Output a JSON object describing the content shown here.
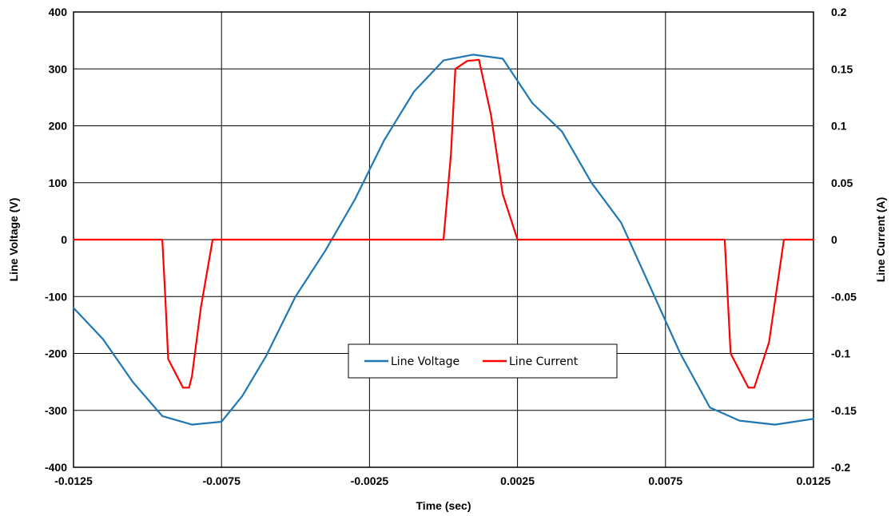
{
  "chart_data": {
    "type": "line",
    "title": "",
    "xlabel": "Time (sec)",
    "ylabel_left": "Line Voltage (V)",
    "ylabel_right": "Line Current (A)",
    "xlim": [
      -0.0125,
      0.0125
    ],
    "ylim_left": [
      -400,
      400
    ],
    "ylim_right": [
      -0.2,
      0.2
    ],
    "grid": true,
    "x_ticks": [
      "-0.0125",
      "-0.0075",
      "-0.0025",
      "0.0025",
      "0.0075",
      "0.0125"
    ],
    "x_tick_values": [
      -0.0125,
      -0.0075,
      -0.0025,
      0.0025,
      0.0075,
      0.0125
    ],
    "y_ticks_left": [
      "400",
      "300",
      "200",
      "100",
      "0",
      "-100",
      "-200",
      "-300",
      "-400"
    ],
    "y_tick_values_left": [
      400,
      300,
      200,
      100,
      0,
      -100,
      -200,
      -300,
      -400
    ],
    "y_ticks_right": [
      "0.2",
      "0.15",
      "0.1",
      "0.05",
      "0",
      "-0.05",
      "-0.1",
      "-0.15",
      "-0.2"
    ],
    "y_tick_values_right": [
      0.2,
      0.15,
      0.1,
      0.05,
      0,
      -0.05,
      -0.1,
      -0.15,
      -0.2
    ],
    "legend_position": "center",
    "series": [
      {
        "name": "Line Voltage",
        "axis": "left",
        "color": "#1f77b4",
        "x": [
          -0.0125,
          -0.0115,
          -0.0105,
          -0.0095,
          -0.0085,
          -0.0075,
          -0.0068,
          -0.006,
          -0.005,
          -0.004,
          -0.003,
          -0.002,
          -0.001,
          0.0,
          0.001,
          0.002,
          0.003,
          0.004,
          0.005,
          0.006,
          0.007,
          0.008,
          0.009,
          0.01,
          0.0112,
          0.0125
        ],
        "y": [
          -120,
          -175,
          -250,
          -310,
          -325,
          -320,
          -275,
          -205,
          -100,
          -20,
          70,
          175,
          260,
          315,
          325,
          318,
          240,
          190,
          100,
          30,
          -85,
          -200,
          -295,
          -318,
          -325,
          -315
        ]
      },
      {
        "name": "Line Current",
        "axis": "right",
        "color": "#ff0000",
        "x": [
          -0.0125,
          -0.0095,
          -0.0094,
          -0.0093,
          -0.009,
          -0.0088,
          -0.0086,
          -0.0085,
          -0.0082,
          -0.0078,
          -0.0075,
          -0.002,
          0.0,
          0.00025,
          0.0004,
          0.0008,
          0.0012,
          0.0016,
          0.002,
          0.0025,
          0.006,
          0.0095,
          0.0096,
          0.0097,
          0.01,
          0.0103,
          0.0105,
          0.011,
          0.0115,
          0.0125
        ],
        "y": [
          0,
          0,
          -0.05,
          -0.105,
          -0.12,
          -0.13,
          -0.13,
          -0.12,
          -0.06,
          0,
          0,
          0,
          0,
          0.075,
          0.15,
          0.157,
          0.158,
          0.11,
          0.04,
          0,
          0,
          0,
          -0.05,
          -0.1,
          -0.115,
          -0.13,
          -0.13,
          -0.09,
          0,
          0
        ]
      }
    ]
  }
}
